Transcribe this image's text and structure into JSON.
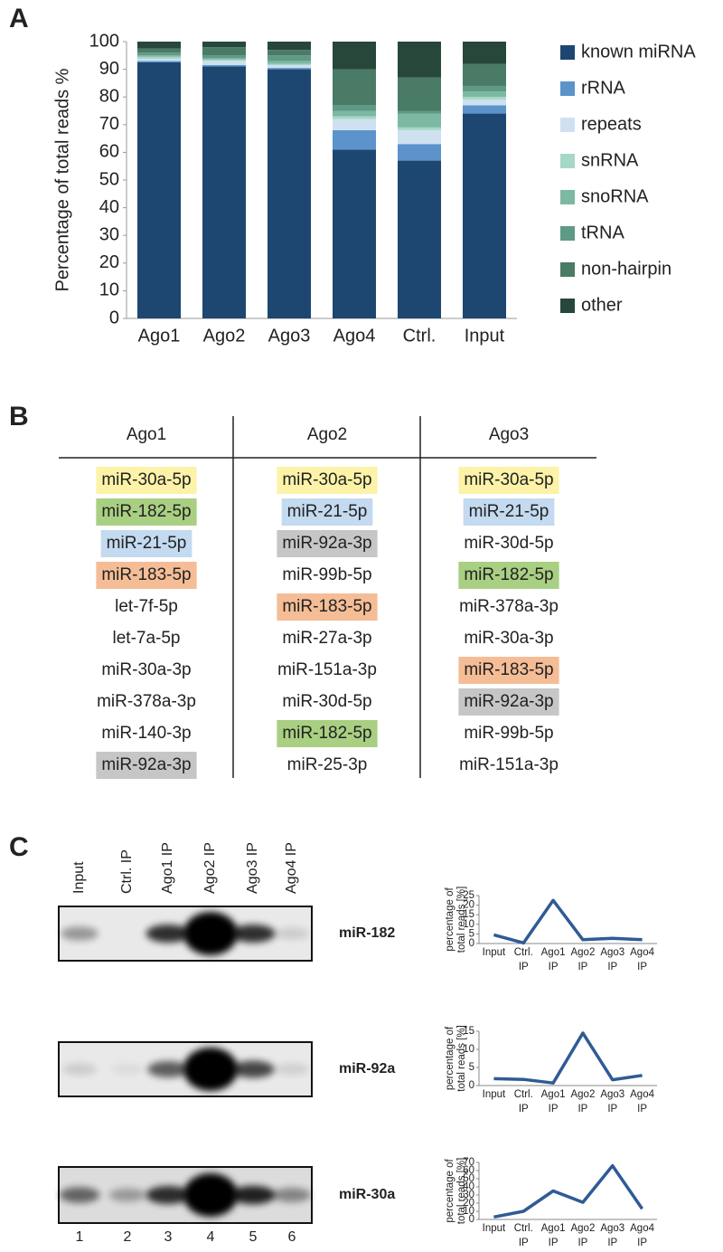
{
  "panels": [
    "A",
    "B",
    "C"
  ],
  "chart_data": [
    {
      "type": "stacked-bar",
      "ylabel": "Percentage of total reads %",
      "categories": [
        "Ago1",
        "Ago2",
        "Ago3",
        "Ago4",
        "Ctrl.",
        "Input"
      ],
      "ylim": [
        0,
        100
      ],
      "yticks": [
        0,
        10,
        20,
        30,
        40,
        50,
        60,
        70,
        80,
        90,
        100
      ],
      "legend": "right",
      "series": [
        {
          "name": "known miRNA",
          "color": "#1d4770",
          "values": [
            92.5,
            91,
            90,
            61,
            57,
            74
          ]
        },
        {
          "name": "rRNA",
          "color": "#5c93cb",
          "values": [
            0.5,
            0.5,
            0.5,
            7,
            6,
            3
          ]
        },
        {
          "name": "repeats",
          "color": "#cfe0f1",
          "values": [
            0.8,
            1.5,
            1,
            4,
            5,
            2
          ]
        },
        {
          "name": "snRNA",
          "color": "#a6d8c5",
          "values": [
            0.7,
            0.5,
            0.5,
            1,
            1,
            1
          ]
        },
        {
          "name": "snoRNA",
          "color": "#7db8a3",
          "values": [
            0.5,
            0.5,
            1,
            2,
            5,
            2
          ]
        },
        {
          "name": "tRNA",
          "color": "#5f9a86",
          "values": [
            1,
            1,
            2,
            2,
            1,
            2
          ]
        },
        {
          "name": "non-hairpin",
          "color": "#4a7b67",
          "values": [
            1.5,
            3,
            2,
            13,
            12,
            8
          ]
        },
        {
          "name": "other",
          "color": "#26473a",
          "values": [
            2.5,
            2,
            3,
            10,
            13,
            8
          ]
        }
      ]
    },
    {
      "type": "line",
      "ylabel": [
        "percentage of",
        "total reads [%]"
      ],
      "categories": [
        [
          "Input"
        ],
        [
          "Ctrl.",
          "IP"
        ],
        [
          "Ago1",
          "IP"
        ],
        [
          "Ago2",
          "IP"
        ],
        [
          "Ago3",
          "IP"
        ],
        [
          "Ago4",
          "IP"
        ]
      ],
      "ylim": [
        0,
        25
      ],
      "yticks": [
        0,
        5,
        10,
        15,
        20,
        25
      ],
      "color": "#2f5b95",
      "values": [
        4.5,
        0.3,
        22.5,
        2,
        2.7,
        2
      ]
    },
    {
      "type": "line",
      "ylabel": [
        "percentage of",
        "total reads [%]"
      ],
      "categories": [
        [
          "Input"
        ],
        [
          "Ctrl.",
          "IP"
        ],
        [
          "Ago1",
          "IP"
        ],
        [
          "Ago2",
          "IP"
        ],
        [
          "Ago3",
          "IP"
        ],
        [
          "Ago4",
          "IP"
        ]
      ],
      "ylim": [
        0,
        15
      ],
      "yticks": [
        0,
        5,
        10,
        15
      ],
      "color": "#2f5b95",
      "values": [
        1.9,
        1.7,
        0.7,
        14.5,
        1.6,
        2.8
      ]
    },
    {
      "type": "line",
      "ylabel": [
        "percentage of",
        "total reads [%]"
      ],
      "categories": [
        [
          "Input"
        ],
        [
          "Ctrl.",
          "IP"
        ],
        [
          "Ago1",
          "IP"
        ],
        [
          "Ago2",
          "IP"
        ],
        [
          "Ago3",
          "IP"
        ],
        [
          "Ago4",
          "IP"
        ]
      ],
      "ylim": [
        0,
        70
      ],
      "yticks": [
        0,
        10,
        20,
        30,
        40,
        50,
        60,
        70
      ],
      "color": "#2f5b95",
      "values": [
        3,
        10,
        35,
        21,
        66,
        13
      ]
    }
  ],
  "table": {
    "header": [
      "Ago1",
      "Ago2",
      "Ago3"
    ],
    "rows": [
      [
        {
          "text": "miR-30a-5p",
          "color": "#fcf3a8"
        },
        {
          "text": "miR-30a-5p",
          "color": "#fcf3a8"
        },
        {
          "text": "miR-30a-5p",
          "color": "#fcf3a8"
        }
      ],
      [
        {
          "text": "miR-182-5p",
          "color": "#a9cf82"
        },
        {
          "text": "miR-21-5p",
          "color": "#c3daf0"
        },
        {
          "text": "miR-21-5p",
          "color": "#c3daf0"
        }
      ],
      [
        {
          "text": "miR-21-5p",
          "color": "#c3daf0"
        },
        {
          "text": "miR-92a-3p",
          "color": "#c6c6c6"
        },
        {
          "text": "miR-30d-5p"
        }
      ],
      [
        {
          "text": "miR-183-5p",
          "color": "#f5bd96"
        },
        {
          "text": "miR-99b-5p"
        },
        {
          "text": "miR-182-5p",
          "color": "#a9cf82"
        }
      ],
      [
        {
          "text": "let-7f-5p"
        },
        {
          "text": "miR-183-5p",
          "color": "#f5bd96"
        },
        {
          "text": "miR-378a-3p"
        }
      ],
      [
        {
          "text": "let-7a-5p"
        },
        {
          "text": "miR-27a-3p"
        },
        {
          "text": "miR-30a-3p"
        }
      ],
      [
        {
          "text": "miR-30a-3p"
        },
        {
          "text": "miR-151a-3p"
        },
        {
          "text": "miR-183-5p",
          "color": "#f5bd96"
        }
      ],
      [
        {
          "text": "miR-378a-3p"
        },
        {
          "text": "miR-30d-5p"
        },
        {
          "text": "miR-92a-3p",
          "color": "#c6c6c6"
        }
      ],
      [
        {
          "text": "miR-140-3p"
        },
        {
          "text": "miR-182-5p",
          "color": "#a9cf82"
        },
        {
          "text": "miR-99b-5p"
        }
      ],
      [
        {
          "text": "miR-92a-3p",
          "color": "#c6c6c6"
        },
        {
          "text": "miR-25-3p"
        },
        {
          "text": "miR-151a-3p"
        }
      ]
    ]
  },
  "blots": {
    "lanes": [
      "Input",
      "Ctrl. IP",
      "Ago1 IP",
      "Ago2 IP",
      "Ago3 IP",
      "Ago4 IP"
    ],
    "probes": [
      "miR-182",
      "miR-92a",
      "miR-30a"
    ],
    "lane_numbers": [
      "1",
      "2",
      "3",
      "4",
      "5",
      "6"
    ]
  }
}
